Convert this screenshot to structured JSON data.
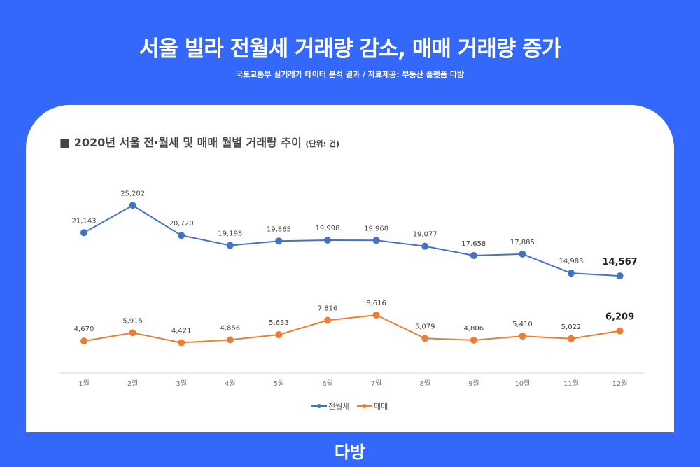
{
  "header": {
    "title": "서울 빌라 전월세 거래량 감소, 매매 거래량 증가",
    "subtitle": "국토교통부 실거래가 데이터 분석 결과 / 자료제공: 부동산 플랫폼 다방"
  },
  "logo": "다방",
  "chart_data": {
    "type": "line",
    "title": "■ 2020년 서울 전·월세 및 매매 월별 거래량 추이",
    "unit": "(단위: 건)",
    "categories": [
      "1월",
      "2월",
      "3월",
      "4월",
      "5월",
      "6월",
      "7월",
      "8월",
      "9월",
      "10월",
      "11월",
      "12월"
    ],
    "series": [
      {
        "name": "전월세",
        "color": "#4472c4",
        "values": [
          21143,
          25282,
          20720,
          19198,
          19865,
          19998,
          19968,
          19077,
          17658,
          17885,
          14983,
          14567
        ]
      },
      {
        "name": "매매",
        "color": "#ed7d31",
        "values": [
          4670,
          5915,
          4421,
          4856,
          5633,
          7816,
          8616,
          5079,
          4806,
          5410,
          5022,
          6209
        ]
      }
    ],
    "ylim": [
      0,
      30000
    ],
    "grid": false,
    "legend": "bottom"
  }
}
